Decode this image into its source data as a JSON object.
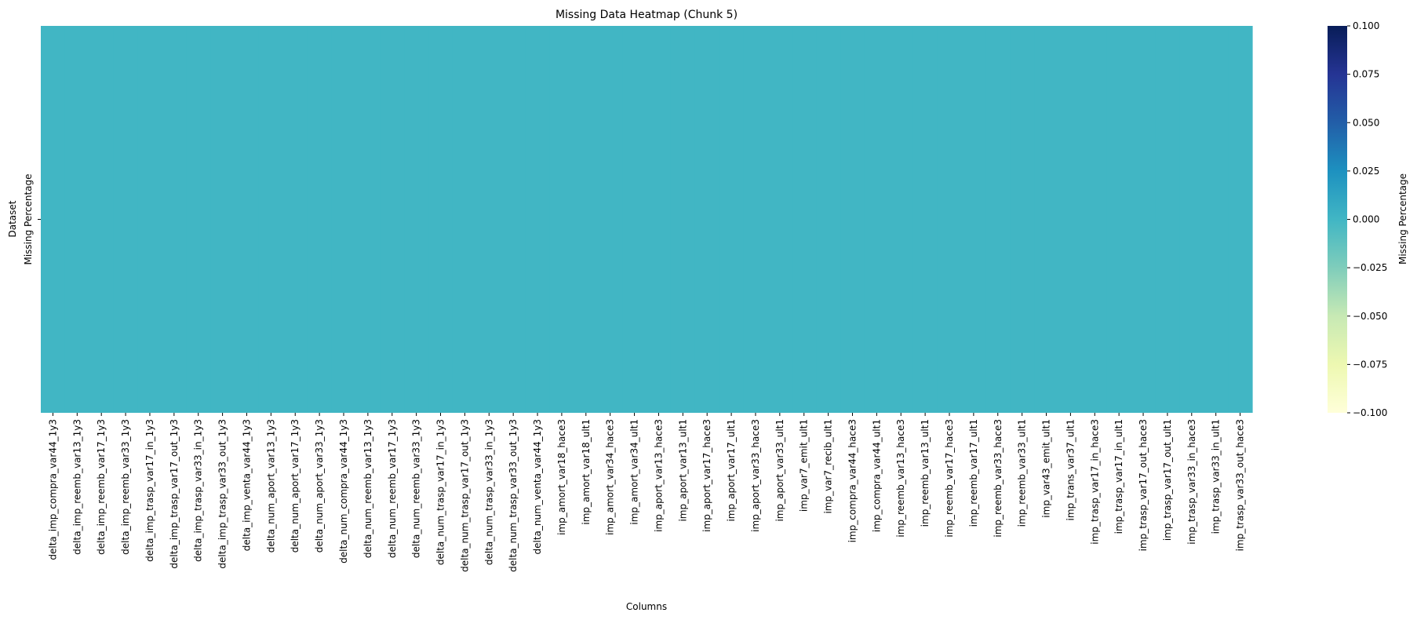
{
  "chart_data": {
    "type": "heatmap",
    "title": "Missing Data Heatmap (Chunk 5)",
    "xlabel": "Columns",
    "ylabel": "Dataset",
    "rows": [
      "Missing Percentage"
    ],
    "columns": [
      "delta_imp_compra_var44_1y3",
      "delta_imp_reemb_var13_1y3",
      "delta_imp_reemb_var17_1y3",
      "delta_imp_reemb_var33_1y3",
      "delta_imp_trasp_var17_in_1y3",
      "delta_imp_trasp_var17_out_1y3",
      "delta_imp_trasp_var33_in_1y3",
      "delta_imp_trasp_var33_out_1y3",
      "delta_imp_venta_var44_1y3",
      "delta_num_aport_var13_1y3",
      "delta_num_aport_var17_1y3",
      "delta_num_aport_var33_1y3",
      "delta_num_compra_var44_1y3",
      "delta_num_reemb_var13_1y3",
      "delta_num_reemb_var17_1y3",
      "delta_num_reemb_var33_1y3",
      "delta_num_trasp_var17_in_1y3",
      "delta_num_trasp_var17_out_1y3",
      "delta_num_trasp_var33_in_1y3",
      "delta_num_trasp_var33_out_1y3",
      "delta_num_venta_var44_1y3",
      "imp_amort_var18_hace3",
      "imp_amort_var18_ult1",
      "imp_amort_var34_hace3",
      "imp_amort_var34_ult1",
      "imp_aport_var13_hace3",
      "imp_aport_var13_ult1",
      "imp_aport_var17_hace3",
      "imp_aport_var17_ult1",
      "imp_aport_var33_hace3",
      "imp_aport_var33_ult1",
      "imp_var7_emit_ult1",
      "imp_var7_recib_ult1",
      "imp_compra_var44_hace3",
      "imp_compra_var44_ult1",
      "imp_reemb_var13_hace3",
      "imp_reemb_var13_ult1",
      "imp_reemb_var17_hace3",
      "imp_reemb_var17_ult1",
      "imp_reemb_var33_hace3",
      "imp_reemb_var33_ult1",
      "imp_var43_emit_ult1",
      "imp_trans_var37_ult1",
      "imp_trasp_var17_in_hace3",
      "imp_trasp_var17_in_ult1",
      "imp_trasp_var17_out_hace3",
      "imp_trasp_var17_out_ult1",
      "imp_trasp_var33_in_hace3",
      "imp_trasp_var33_in_ult1",
      "imp_trasp_var33_out_hace3"
    ],
    "values": [
      [
        0,
        0,
        0,
        0,
        0,
        0,
        0,
        0,
        0,
        0,
        0,
        0,
        0,
        0,
        0,
        0,
        0,
        0,
        0,
        0,
        0,
        0,
        0,
        0,
        0,
        0,
        0,
        0,
        0,
        0,
        0,
        0,
        0,
        0,
        0,
        0,
        0,
        0,
        0,
        0,
        0,
        0,
        0,
        0,
        0,
        0,
        0,
        0,
        0,
        0
      ]
    ],
    "colorbar": {
      "label": "Missing Percentage",
      "colormap": "YlGnBu",
      "range": [
        -0.1,
        0.1
      ],
      "ticks": [
        "0.100",
        "0.075",
        "0.050",
        "0.025",
        "0.000",
        "−0.025",
        "−0.050",
        "−0.075",
        "−0.100"
      ],
      "cell_color": "#41b6c4",
      "stops": [
        "#ffffd9",
        "#edf8b1",
        "#c7e9b4",
        "#7fcdbb",
        "#41b6c4",
        "#1d91c0",
        "#225ea8",
        "#253494",
        "#081d58"
      ]
    }
  }
}
